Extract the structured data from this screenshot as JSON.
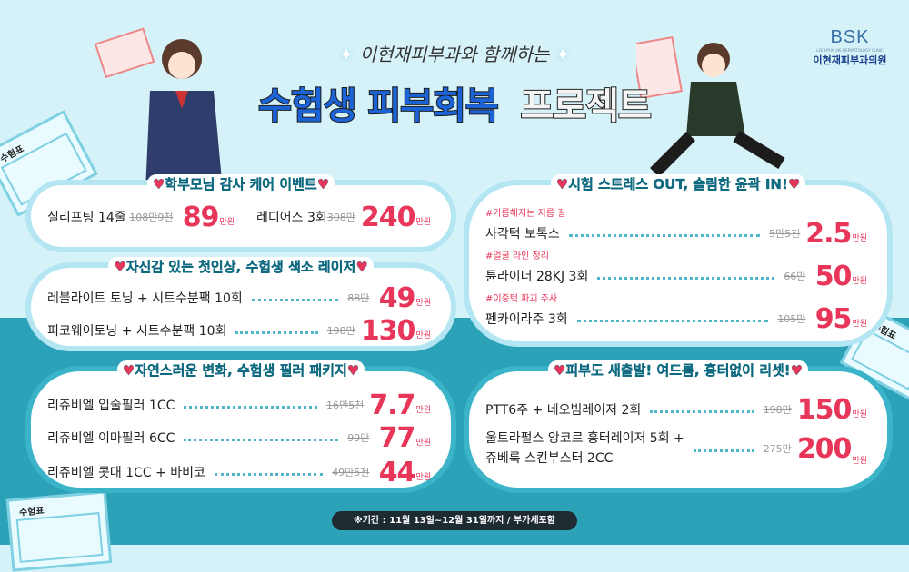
{
  "header": {
    "subtitle": "이현재피부과와 함께하는",
    "title_blue": "수험생 피부회복",
    "title_dark": "프로젝트"
  },
  "logo": {
    "mark": "BSK",
    "english": "LEE HYUN JAE DERMATOLOGY CLINIC",
    "korean": "이현재피부과의원"
  },
  "ticket_label": "수험표",
  "unit": "만원",
  "heart": "♥",
  "colors": {
    "accent": "#e8355a",
    "title": "#0f6a80",
    "blue": "#1c63d6",
    "teal_bg": "#2ba2b8",
    "light_bg": "#d6f2f9"
  },
  "cards": [
    {
      "title": "학부모님 감사 케어 이벤트",
      "items": [
        {
          "name": "실리프팅 14줄",
          "original": "108만9천",
          "price": "89"
        },
        {
          "name": "레디어스 3회",
          "original": "308만",
          "price": "240"
        }
      ]
    },
    {
      "title": "자신감 있는 첫인상, 수험생 색소 레이저",
      "items": [
        {
          "name": "레블라이트 토닝 + 시트수분팩 10회",
          "original": "88만",
          "price": "49"
        },
        {
          "name": "피코웨이토닝 + 시트수분팩 10회",
          "original": "198만",
          "price": "130"
        }
      ]
    },
    {
      "title": "자연스러운 변화, 수험생 필러 패키지",
      "items": [
        {
          "name": "리쥬비엘 입술필러 1CC",
          "original": "16만5천",
          "price": "7.7"
        },
        {
          "name": "리쥬비엘 이마필러 6CC",
          "original": "99만",
          "price": "77"
        },
        {
          "name": "리쥬비엘 콧대 1CC + 바비코",
          "original": "49만5천",
          "price": "44"
        }
      ]
    },
    {
      "title": "시험 스트레스 OUT, 슬림한 윤곽 IN!",
      "items": [
        {
          "tag": "#가름해지는 지름 길",
          "name": "사각턱 보톡스",
          "original": "5만5천",
          "price": "2.5"
        },
        {
          "tag": "#얼굴 라인 정리",
          "name": "튠라이너 28KJ 3회",
          "original": "66만",
          "price": "50"
        },
        {
          "tag": "#이중턱 파괴 주사",
          "name": "펜카이라주 3회",
          "original": "105만",
          "price": "95"
        }
      ]
    },
    {
      "title": "피부도 새출발! 여드름, 흉터없이 리셋!",
      "items": [
        {
          "name": "PTT6주 + 네오빔레이저 2회",
          "original": "198만",
          "price": "150"
        },
        {
          "name": "울트라펄스 앙코르 흉터레이저 5회 +",
          "name2": "쥬베룩 스킨부스터 2CC",
          "original": "275만",
          "price": "200"
        }
      ]
    }
  ],
  "footer": "※기간 : 11월 13일~12월 31일까지 / 부가세포함"
}
